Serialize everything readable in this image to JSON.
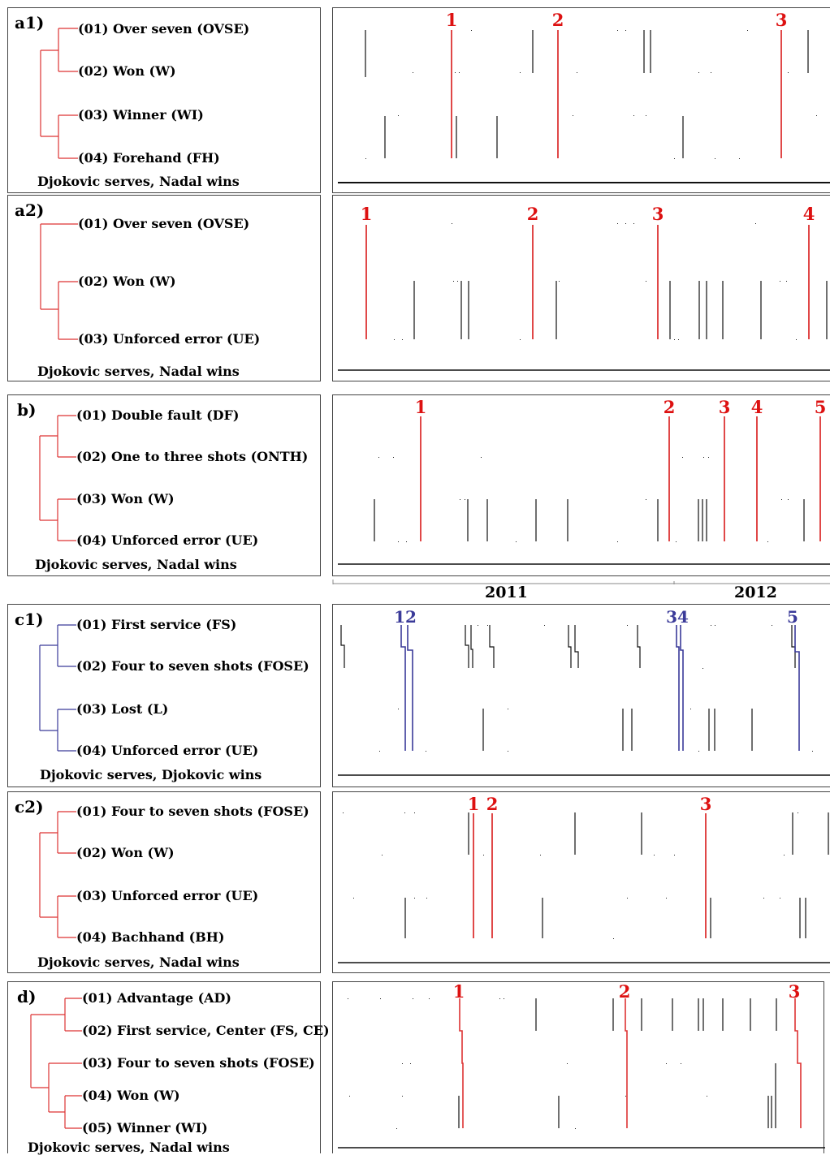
{
  "panels": [
    {
      "id": "a1",
      "label": "a1)",
      "color": "#dd3333",
      "items": [
        "(01) Over seven (OVSE)",
        "(02) Won (W)",
        "(03) Winner (WI)",
        "(04) Forehand (FH)"
      ],
      "caption": "Djokovic serves, Nadal wins",
      "markers": [
        "1",
        "2",
        "3"
      ]
    },
    {
      "id": "a2",
      "label": "a2)",
      "color": "#dd3333",
      "items": [
        "(01) Over seven (OVSE)",
        "(02) Won (W)",
        "(03) Unforced error (UE)"
      ],
      "caption": "Djokovic serves, Nadal wins",
      "markers": [
        "1",
        "2",
        "3",
        "4"
      ]
    },
    {
      "id": "b",
      "label": "b)",
      "color": "#dd3333",
      "items": [
        "(01) Double fault (DF)",
        "(02) One to three shots (ONTH)",
        "(03) Won (W)",
        "(04) Unforced error (UE)"
      ],
      "caption": "Djokovic serves, Nadal wins",
      "markers": [
        "1",
        "2",
        "3",
        "4",
        "5"
      ]
    },
    {
      "id": "c1",
      "label": "c1)",
      "color": "#3a3a99",
      "items": [
        "(01) First service (FS)",
        "(02) Four to seven shots (FOSE)",
        "(03) Lost (L)",
        "(04) Unforced error (UE)"
      ],
      "caption": "Djokovic serves, Djokovic wins",
      "markers": [
        "12",
        "34",
        "5"
      ]
    },
    {
      "id": "c2",
      "label": "c2)",
      "color": "#dd3333",
      "items": [
        "(01) Four to seven shots (FOSE)",
        "(02) Won (W)",
        "(03) Unforced error (UE)",
        "(04) Bachhand (BH)"
      ],
      "caption": "Djokovic serves, Nadal wins",
      "markers": [
        "1",
        "2",
        "3"
      ]
    },
    {
      "id": "d",
      "label": "d)",
      "color": "#dd3333",
      "items": [
        "(01) Advantage (AD)",
        "(02) First service, Center (FS, CE)",
        "(03) Four to seven shots (FOSE)",
        "(04) Won (W)",
        "(05) Winner (WI)"
      ],
      "caption": "Djokovic serves, Nadal wins",
      "markers": [
        "1",
        "2",
        "3"
      ]
    }
  ],
  "timeline": {
    "years": [
      "2011",
      "2012"
    ]
  }
}
